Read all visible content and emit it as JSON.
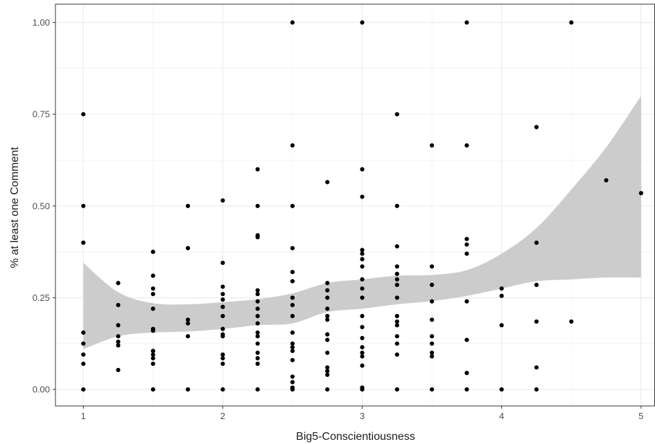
{
  "chart_data": {
    "type": "scatter",
    "title": "",
    "xlabel": "Big5-Conscientiousness",
    "ylabel": "% at least one Comment",
    "xlim": [
      0.8,
      5.1
    ],
    "ylim": [
      -0.045,
      1.05
    ],
    "x_ticks": [
      1,
      2,
      3,
      4,
      5
    ],
    "x_tick_labels": [
      "1",
      "2",
      "3",
      "4",
      "5"
    ],
    "y_ticks": [
      0,
      0.25,
      0.5,
      0.75,
      1.0
    ],
    "y_tick_labels": [
      "0.00",
      "0.25",
      "0.50",
      "0.75",
      "1.00"
    ],
    "grid": true,
    "colors": {
      "points": "#000000",
      "smooth_line": "#1f5fe0",
      "confidence_band": "#cccccc",
      "grid": "#ebebeb",
      "panel_border": "#333333"
    },
    "points": [
      [
        1,
        0.75
      ],
      [
        1,
        0.5
      ],
      [
        1,
        0.4
      ],
      [
        1,
        0.155
      ],
      [
        1,
        0.125
      ],
      [
        1,
        0.095
      ],
      [
        1,
        0.07
      ],
      [
        1,
        0
      ],
      [
        1.25,
        0.29
      ],
      [
        1.25,
        0.23
      ],
      [
        1.25,
        0.175
      ],
      [
        1.25,
        0.145
      ],
      [
        1.25,
        0.13
      ],
      [
        1.25,
        0.12
      ],
      [
        1.25,
        0.053
      ],
      [
        1.5,
        0.375
      ],
      [
        1.5,
        0.31
      ],
      [
        1.5,
        0.275
      ],
      [
        1.5,
        0.26
      ],
      [
        1.5,
        0.22
      ],
      [
        1.5,
        0.165
      ],
      [
        1.5,
        0.16
      ],
      [
        1.5,
        0.105
      ],
      [
        1.5,
        0.095
      ],
      [
        1.5,
        0.085
      ],
      [
        1.5,
        0.07
      ],
      [
        1.5,
        0
      ],
      [
        1.75,
        0.5
      ],
      [
        1.75,
        0.385
      ],
      [
        1.75,
        0.19
      ],
      [
        1.75,
        0.18
      ],
      [
        1.75,
        0.145
      ],
      [
        1.75,
        0
      ],
      [
        2,
        0.515
      ],
      [
        2,
        0.345
      ],
      [
        2,
        0.28
      ],
      [
        2,
        0.26
      ],
      [
        2,
        0.245
      ],
      [
        2,
        0.225
      ],
      [
        2,
        0.2
      ],
      [
        2,
        0.165
      ],
      [
        2,
        0.15
      ],
      [
        2,
        0.145
      ],
      [
        2,
        0.095
      ],
      [
        2,
        0.085
      ],
      [
        2,
        0.07
      ],
      [
        2,
        0
      ],
      [
        2.25,
        0.6
      ],
      [
        2.25,
        0.5
      ],
      [
        2.25,
        0.42
      ],
      [
        2.25,
        0.415
      ],
      [
        2.25,
        0.27
      ],
      [
        2.25,
        0.26
      ],
      [
        2.25,
        0.24
      ],
      [
        2.25,
        0.22
      ],
      [
        2.25,
        0.2
      ],
      [
        2.25,
        0.18
      ],
      [
        2.25,
        0.155
      ],
      [
        2.25,
        0.145
      ],
      [
        2.25,
        0.125
      ],
      [
        2.25,
        0.1
      ],
      [
        2.25,
        0.085
      ],
      [
        2.25,
        0.07
      ],
      [
        2.25,
        0
      ],
      [
        2.5,
        1.0
      ],
      [
        2.5,
        0.665
      ],
      [
        2.5,
        0.5
      ],
      [
        2.5,
        0.385
      ],
      [
        2.5,
        0.32
      ],
      [
        2.5,
        0.295
      ],
      [
        2.5,
        0.25
      ],
      [
        2.5,
        0.23
      ],
      [
        2.5,
        0.2
      ],
      [
        2.5,
        0.155
      ],
      [
        2.5,
        0.125
      ],
      [
        2.5,
        0.115
      ],
      [
        2.5,
        0.105
      ],
      [
        2.5,
        0.08
      ],
      [
        2.5,
        0.035
      ],
      [
        2.5,
        0.02
      ],
      [
        2.5,
        0.005
      ],
      [
        2.5,
        0
      ],
      [
        2.75,
        0.565
      ],
      [
        2.75,
        0.29
      ],
      [
        2.75,
        0.27
      ],
      [
        2.75,
        0.25
      ],
      [
        2.75,
        0.22
      ],
      [
        2.75,
        0.2
      ],
      [
        2.75,
        0.19
      ],
      [
        2.75,
        0.15
      ],
      [
        2.75,
        0.135
      ],
      [
        2.75,
        0.1
      ],
      [
        2.75,
        0.06
      ],
      [
        2.75,
        0.05
      ],
      [
        2.75,
        0.04
      ],
      [
        2.75,
        0
      ],
      [
        3,
        1.0
      ],
      [
        3,
        0.6
      ],
      [
        3,
        0.525
      ],
      [
        3,
        0.38
      ],
      [
        3,
        0.37
      ],
      [
        3,
        0.355
      ],
      [
        3,
        0.335
      ],
      [
        3,
        0.3
      ],
      [
        3,
        0.275
      ],
      [
        3,
        0.25
      ],
      [
        3,
        0.2
      ],
      [
        3,
        0.17
      ],
      [
        3,
        0.14
      ],
      [
        3,
        0.115
      ],
      [
        3,
        0.1
      ],
      [
        3,
        0.09
      ],
      [
        3,
        0.065
      ],
      [
        3,
        0.005
      ],
      [
        3,
        0
      ],
      [
        3.25,
        0.75
      ],
      [
        3.25,
        0.5
      ],
      [
        3.25,
        0.39
      ],
      [
        3.25,
        0.335
      ],
      [
        3.25,
        0.315
      ],
      [
        3.25,
        0.3
      ],
      [
        3.25,
        0.285
      ],
      [
        3.25,
        0.25
      ],
      [
        3.25,
        0.2
      ],
      [
        3.25,
        0.185
      ],
      [
        3.25,
        0.175
      ],
      [
        3.25,
        0.145
      ],
      [
        3.25,
        0.125
      ],
      [
        3.25,
        0.095
      ],
      [
        3.25,
        0
      ],
      [
        3.5,
        0.665
      ],
      [
        3.5,
        0.335
      ],
      [
        3.5,
        0.285
      ],
      [
        3.5,
        0.24
      ],
      [
        3.5,
        0.19
      ],
      [
        3.5,
        0.145
      ],
      [
        3.5,
        0.125
      ],
      [
        3.5,
        0.1
      ],
      [
        3.5,
        0.09
      ],
      [
        3.5,
        0
      ],
      [
        3.75,
        1.0
      ],
      [
        3.75,
        0.665
      ],
      [
        3.75,
        0.41
      ],
      [
        3.75,
        0.395
      ],
      [
        3.75,
        0.37
      ],
      [
        3.75,
        0.24
      ],
      [
        3.75,
        0.135
      ],
      [
        3.75,
        0.045
      ],
      [
        3.75,
        0
      ],
      [
        4,
        0.275
      ],
      [
        4,
        0.255
      ],
      [
        4,
        0.175
      ],
      [
        4,
        0
      ],
      [
        4.25,
        0.715
      ],
      [
        4.25,
        0.4
      ],
      [
        4.25,
        0.285
      ],
      [
        4.25,
        0.185
      ],
      [
        4.25,
        0.06
      ],
      [
        4.25,
        0
      ],
      [
        4.5,
        1.0
      ],
      [
        4.5,
        0.185
      ],
      [
        4.75,
        0.57
      ],
      [
        5,
        0.535
      ]
    ],
    "smooth": {
      "x": [
        1.0,
        1.25,
        1.5,
        1.75,
        2.0,
        2.25,
        2.5,
        2.75,
        3.0,
        3.25,
        3.5,
        3.75,
        4.0,
        4.25,
        4.5,
        4.75,
        5.0
      ],
      "y": [
        0.227,
        0.205,
        0.193,
        0.193,
        0.2,
        0.211,
        0.221,
        0.25,
        0.259,
        0.27,
        0.275,
        0.29,
        0.323,
        0.362,
        0.414,
        0.48,
        0.552
      ],
      "lower": [
        0.11,
        0.145,
        0.155,
        0.158,
        0.165,
        0.175,
        0.18,
        0.211,
        0.22,
        0.232,
        0.241,
        0.255,
        0.275,
        0.295,
        0.3,
        0.305,
        0.305
      ],
      "upper": [
        0.345,
        0.265,
        0.235,
        0.232,
        0.238,
        0.246,
        0.262,
        0.29,
        0.3,
        0.31,
        0.312,
        0.325,
        0.37,
        0.44,
        0.545,
        0.66,
        0.8
      ]
    }
  }
}
